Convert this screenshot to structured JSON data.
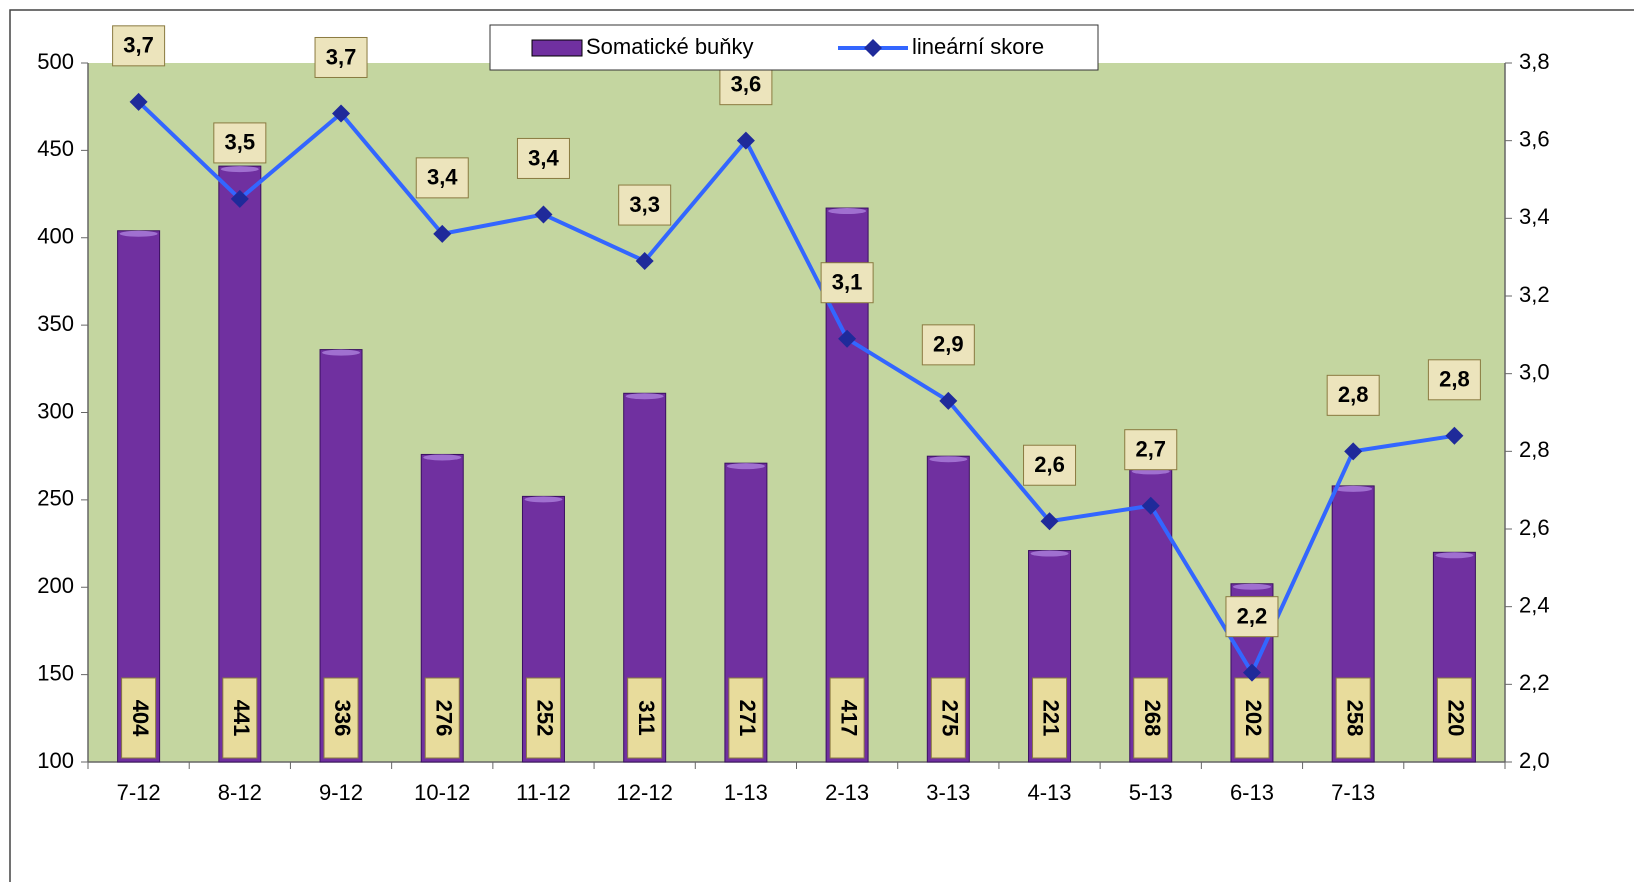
{
  "chart_data": {
    "type": "bar-line",
    "categories": [
      "7-12",
      "8-12",
      "9-12",
      "10-12",
      "11-12",
      "12-12",
      "1-13",
      "2-13",
      "3-13",
      "4-13",
      "5-13",
      "6-13",
      "7-13",
      null
    ],
    "series": [
      {
        "name": "Somatické buňky",
        "type": "bar",
        "color": "#7030a0",
        "values": [
          404,
          441,
          336,
          276,
          252,
          311,
          271,
          417,
          275,
          221,
          268,
          202,
          258,
          220
        ]
      },
      {
        "name": "lineární skore",
        "type": "line",
        "axis": "y2",
        "color": "#3366ff",
        "marker_color": "#1f2a9a",
        "values": [
          3.7,
          3.45,
          3.67,
          3.36,
          3.41,
          3.29,
          3.6,
          3.09,
          2.93,
          2.62,
          2.66,
          2.23,
          2.8,
          2.84
        ],
        "value_labels": [
          "3,7",
          "3,5",
          "3,7",
          "3,4",
          "3,4",
          "3,3",
          "3,6",
          "3,1",
          "2,9",
          "2,6",
          "2,7",
          "2,2",
          "2,8",
          "2,8"
        ]
      }
    ],
    "ylim": [
      100,
      500
    ],
    "yticks": [
      100,
      150,
      200,
      250,
      300,
      350,
      400,
      450,
      500
    ],
    "y2lim": [
      2.0,
      3.8
    ],
    "y2ticks": [
      {
        "value": 2.0,
        "label": "2,0"
      },
      {
        "value": 2.2,
        "label": "2,2"
      },
      {
        "value": 2.4,
        "label": "2,4"
      },
      {
        "value": 2.6,
        "label": "2,6"
      },
      {
        "value": 2.8,
        "label": "2,8"
      },
      {
        "value": 3.0,
        "label": "3,0"
      },
      {
        "value": 3.2,
        "label": "3,2"
      },
      {
        "value": 3.4,
        "label": "3,4"
      },
      {
        "value": 3.6,
        "label": "3,6"
      },
      {
        "value": 3.8,
        "label": "3,8"
      }
    ],
    "plot_background": "#c4d6a0",
    "legend": "top"
  }
}
